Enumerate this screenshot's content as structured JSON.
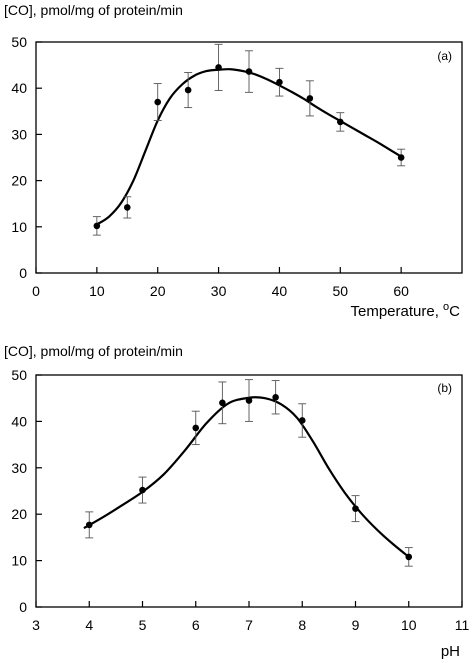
{
  "chart_data": [
    {
      "type": "scatter",
      "title": "",
      "panel_label": "(a)",
      "ylabel": "[CO], pmol/mg of protein/min",
      "xlabel": "Temperature, ",
      "xlabel_unit_sup": "o",
      "xlabel_unit": "C",
      "xlim": [
        0,
        70
      ],
      "ylim": [
        0,
        50
      ],
      "x_ticks": [
        0,
        10,
        20,
        30,
        40,
        50,
        60
      ],
      "y_ticks": [
        0,
        10,
        20,
        30,
        40,
        50
      ],
      "grid": false,
      "points": [
        {
          "x": 10,
          "y": 10.2,
          "err": 2.0
        },
        {
          "x": 15,
          "y": 14.2,
          "err": 2.3
        },
        {
          "x": 20,
          "y": 37.0,
          "err": 4.0
        },
        {
          "x": 25,
          "y": 39.6,
          "err": 3.8
        },
        {
          "x": 30,
          "y": 44.5,
          "err": 5.0
        },
        {
          "x": 35,
          "y": 43.6,
          "err": 4.5
        },
        {
          "x": 40,
          "y": 41.3,
          "err": 3.0
        },
        {
          "x": 45,
          "y": 37.8,
          "err": 3.8
        },
        {
          "x": 50,
          "y": 32.7,
          "err": 2.0
        },
        {
          "x": 60,
          "y": 25.0,
          "err": 1.8
        }
      ],
      "fit_curve": [
        [
          10,
          10.5
        ],
        [
          12,
          12.2
        ],
        [
          14,
          15.2
        ],
        [
          16,
          20.0
        ],
        [
          18,
          26.5
        ],
        [
          20,
          33.0
        ],
        [
          22,
          37.8
        ],
        [
          24,
          40.8
        ],
        [
          26,
          42.7
        ],
        [
          28,
          43.7
        ],
        [
          30,
          44.0
        ],
        [
          32,
          44.1
        ],
        [
          34,
          43.7
        ],
        [
          36,
          43.0
        ],
        [
          38,
          41.9
        ],
        [
          40,
          40.6
        ],
        [
          42,
          39.2
        ],
        [
          44,
          37.7
        ],
        [
          46,
          36.0
        ],
        [
          48,
          34.4
        ],
        [
          50,
          32.9
        ],
        [
          52,
          31.4
        ],
        [
          54,
          29.9
        ],
        [
          56,
          28.4
        ],
        [
          58,
          26.8
        ],
        [
          60,
          25.2
        ]
      ]
    },
    {
      "type": "scatter",
      "title": "",
      "panel_label": "(b)",
      "ylabel": "[CO], pmol/mg of protein/min",
      "xlabel": "pH",
      "xlim": [
        3,
        11
      ],
      "ylim": [
        0,
        50
      ],
      "x_ticks": [
        3,
        4,
        5,
        6,
        7,
        8,
        9,
        10,
        11
      ],
      "y_ticks": [
        0,
        10,
        20,
        30,
        40,
        50
      ],
      "grid": false,
      "points": [
        {
          "x": 4.0,
          "y": 17.7,
          "err": 2.8
        },
        {
          "x": 5.0,
          "y": 25.2,
          "err": 2.8
        },
        {
          "x": 6.0,
          "y": 38.6,
          "err": 3.6
        },
        {
          "x": 6.5,
          "y": 44.0,
          "err": 4.5
        },
        {
          "x": 7.0,
          "y": 44.5,
          "err": 4.5
        },
        {
          "x": 7.5,
          "y": 45.2,
          "err": 3.6
        },
        {
          "x": 8.0,
          "y": 40.2,
          "err": 3.6
        },
        {
          "x": 9.0,
          "y": 21.2,
          "err": 2.8
        },
        {
          "x": 10.0,
          "y": 10.8,
          "err": 2.0
        }
      ],
      "fit_curve": [
        [
          3.9,
          17.0
        ],
        [
          4.25,
          19.3
        ],
        [
          4.6,
          21.8
        ],
        [
          5.0,
          24.8
        ],
        [
          5.4,
          28.6
        ],
        [
          5.8,
          33.8
        ],
        [
          6.2,
          39.6
        ],
        [
          6.6,
          43.8
        ],
        [
          7.0,
          45.1
        ],
        [
          7.3,
          45.0
        ],
        [
          7.6,
          43.7
        ],
        [
          7.9,
          40.8
        ],
        [
          8.2,
          35.7
        ],
        [
          8.5,
          29.8
        ],
        [
          8.8,
          24.6
        ],
        [
          9.1,
          20.3
        ],
        [
          9.4,
          16.7
        ],
        [
          9.7,
          13.6
        ],
        [
          10.0,
          10.8
        ]
      ]
    }
  ]
}
